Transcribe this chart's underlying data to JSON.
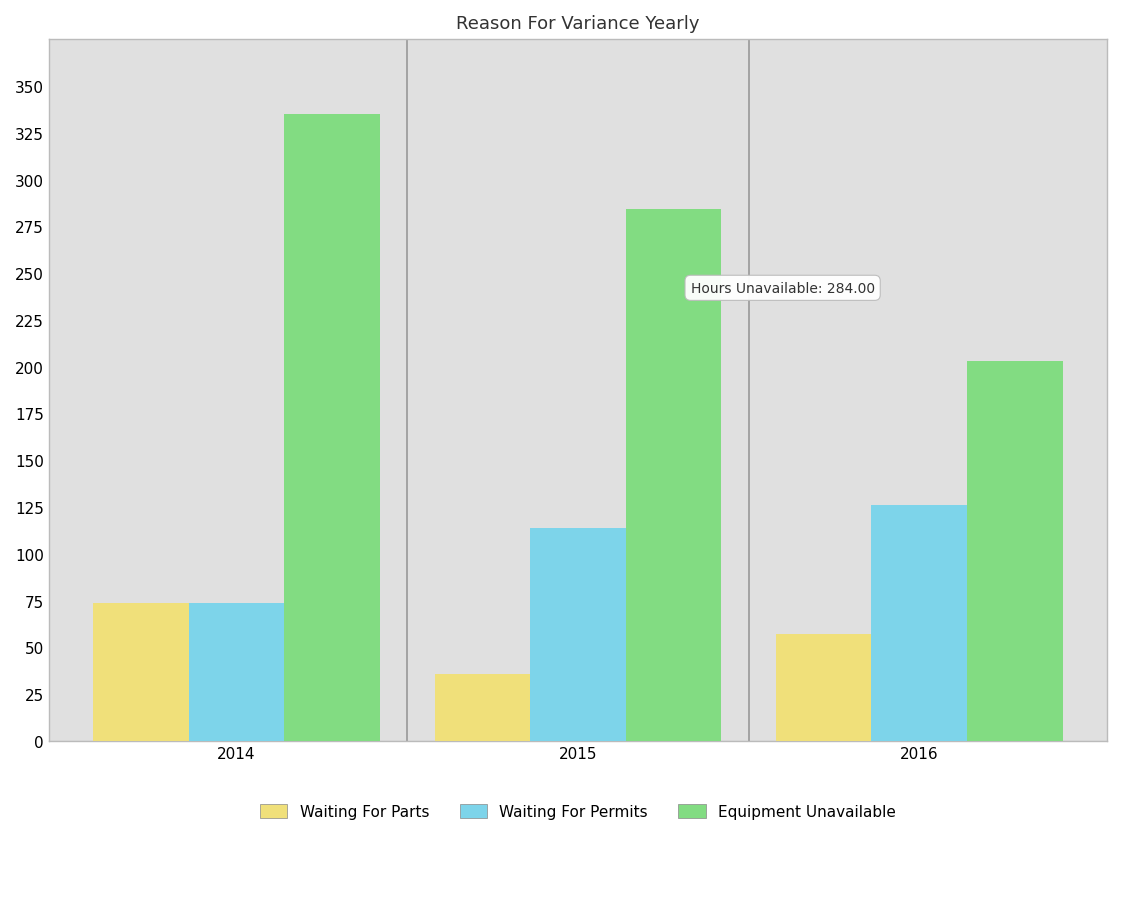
{
  "title": "Reason For Variance Yearly",
  "years": [
    "2014",
    "2015",
    "2016"
  ],
  "categories": [
    "Waiting For Parts",
    "Waiting For Permits",
    "Equipment Unavailable"
  ],
  "values": {
    "Waiting For Parts": [
      74,
      36,
      57
    ],
    "Waiting For Permits": [
      74,
      114,
      126
    ],
    "Equipment Unavailable": [
      335,
      284,
      203
    ]
  },
  "colors": {
    "Waiting For Parts": "#F0E07A",
    "Waiting For Permits": "#7DD4EA",
    "Equipment Unavailable": "#82DC82"
  },
  "tooltip_text": "Hours Unavailable: 284.00",
  "ylim": [
    0,
    375
  ],
  "yticks": [
    0,
    25,
    50,
    75,
    100,
    125,
    150,
    175,
    200,
    225,
    250,
    275,
    300,
    325,
    350
  ],
  "background_color": "#DCDCDC",
  "plot_background_color": "#E0E0E0",
  "bar_width": 0.28,
  "title_fontsize": 13,
  "tick_fontsize": 11,
  "legend_fontsize": 11,
  "divider_color": "#999999",
  "frame_color": "#FFFFFF",
  "outer_bg": "#FFFFFF"
}
